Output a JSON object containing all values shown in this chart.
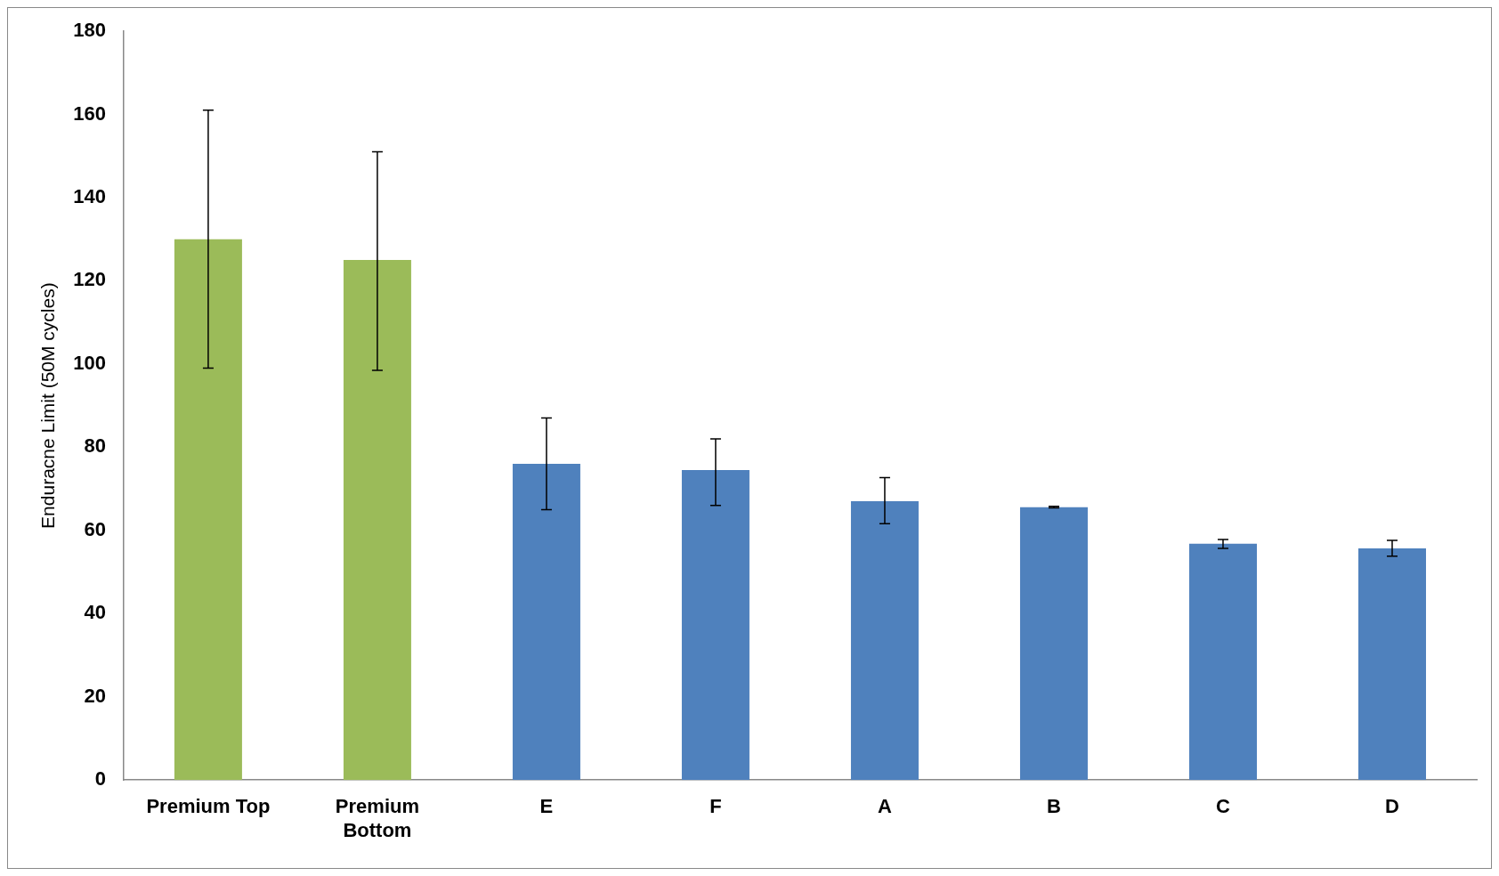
{
  "chart_data": {
    "type": "bar",
    "ylabel": "Enduracne Limit (50M cycles)",
    "categories": [
      "Premium Top",
      "Premium Bottom",
      "E",
      "F",
      "A",
      "B",
      "C",
      "D"
    ],
    "values": [
      130,
      125,
      76,
      74.5,
      67,
      65.6,
      56.8,
      55.7
    ],
    "colors": [
      "#9bbb59",
      "#9bbb59",
      "#4f81bd",
      "#4f81bd",
      "#4f81bd",
      "#4f81bd",
      "#4f81bd",
      "#4f81bd"
    ],
    "errors": [
      [
        99,
        161
      ],
      [
        98.5,
        151
      ],
      [
        65,
        87
      ],
      [
        66,
        82
      ],
      [
        61.6,
        72.7
      ],
      [
        65.4,
        65.8
      ],
      [
        55.7,
        57.8
      ],
      [
        53.8,
        57.6
      ]
    ],
    "ylim": [
      0,
      180
    ],
    "yticks": [
      0,
      20,
      40,
      60,
      80,
      100,
      120,
      140,
      160,
      180
    ],
    "grid": false,
    "legend": false
  }
}
